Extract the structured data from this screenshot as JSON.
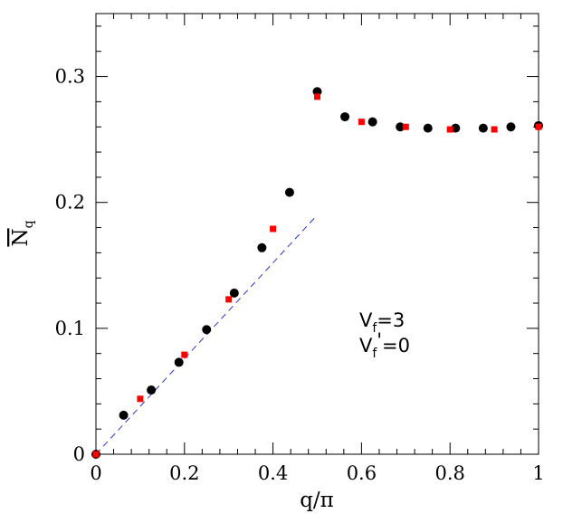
{
  "chart_data": {
    "type": "scatter",
    "xlabel": "q/π",
    "ylabel": {
      "main": "N",
      "sub": "q"
    },
    "xlim": [
      0,
      1
    ],
    "ylim": [
      0,
      0.35
    ],
    "x_ticks": [
      0,
      0.2,
      0.4,
      0.6,
      0.8,
      1
    ],
    "x_tick_labels": [
      "0",
      "0.2",
      "0.4",
      "0.6",
      "0.8",
      "1"
    ],
    "y_ticks": [
      0,
      0.1,
      0.2,
      0.3
    ],
    "y_tick_labels": [
      "0",
      "0.1",
      "0.2",
      "0.3"
    ],
    "grid": false,
    "series": [
      {
        "marker": "circle",
        "color": "#000000",
        "x": [
          0,
          0.0625,
          0.125,
          0.1875,
          0.25,
          0.3125,
          0.375,
          0.4375,
          0.5,
          0.5625,
          0.625,
          0.6875,
          0.75,
          0.8125,
          0.875,
          0.9375,
          1.0
        ],
        "y": [
          0,
          0.031,
          0.051,
          0.073,
          0.099,
          0.128,
          0.164,
          0.208,
          0.288,
          0.268,
          0.264,
          0.26,
          0.259,
          0.259,
          0.259,
          0.26,
          0.261
        ]
      },
      {
        "marker": "square",
        "color": "#ff0000",
        "x": [
          0,
          0.1,
          0.2,
          0.3,
          0.4,
          0.5,
          0.6,
          0.7,
          0.8,
          0.9,
          1.0
        ],
        "y": [
          0,
          0.044,
          0.079,
          0.123,
          0.179,
          0.284,
          0.264,
          0.26,
          0.258,
          0.258,
          0.26
        ]
      }
    ],
    "reference_line": {
      "style": "dashed",
      "color": "#3333cc",
      "x": [
        0,
        0.5
      ],
      "y": [
        0,
        0.19
      ]
    },
    "annotation": {
      "line1": {
        "main": "V",
        "sub": "f",
        "rest": "=3"
      },
      "line2": {
        "main": "V",
        "sub": "f",
        "prime": "'",
        "rest": "=0"
      },
      "position": {
        "x": 0.595,
        "y": 0.1
      }
    }
  }
}
